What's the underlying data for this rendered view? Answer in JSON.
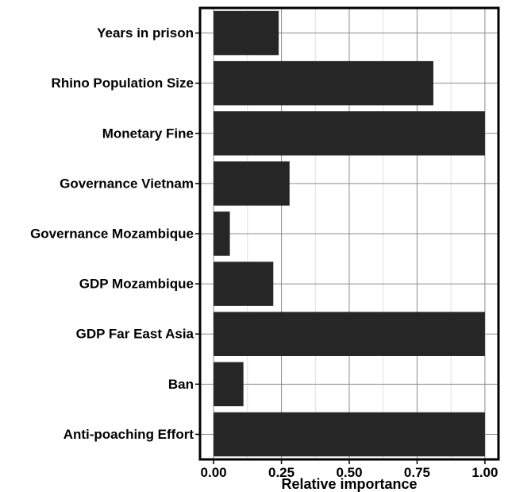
{
  "chart_data": {
    "type": "bar",
    "orientation": "horizontal",
    "categories": [
      "Years in prison",
      "Rhino Population Size",
      "Monetary Fine",
      "Governance Vietnam",
      "Governance Mozambique",
      "GDP Mozambique",
      "GDP Far East Asia",
      "Ban",
      "Anti-poaching Effort"
    ],
    "values": [
      0.24,
      0.81,
      1.0,
      0.28,
      0.06,
      0.22,
      1.0,
      0.11,
      1.0
    ],
    "xticks": [
      "0.00",
      "0.25",
      "0.50",
      "0.75",
      "1.00"
    ],
    "xtick_values": [
      0,
      0.25,
      0.5,
      0.75,
      1.0
    ],
    "xlim": [
      -0.05,
      1.05
    ],
    "xlabel": "Relative importance",
    "ylabel": "",
    "title": "",
    "grid": true,
    "legend": "none",
    "bar_color": "#262626",
    "grid_color": "#8c8c8c",
    "background": "#ffffff"
  }
}
